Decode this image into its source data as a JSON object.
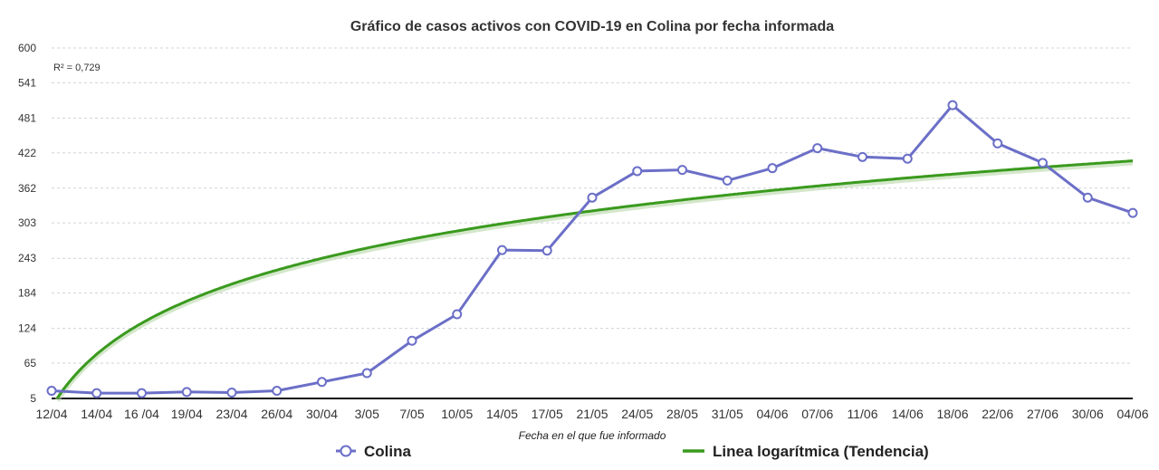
{
  "chart_data": {
    "type": "line",
    "title": "Gráfico de casos activos con COVID-19 en Colina por fecha informada",
    "xlabel": "Fecha en el que fue informado",
    "ylabel": "",
    "ylim": [
      5,
      600
    ],
    "yticks": [
      "5",
      "65",
      "124",
      "184",
      "243",
      "303",
      "362",
      "422",
      "481",
      "541",
      "600"
    ],
    "grid": true,
    "legend_placement": "bottom",
    "annotation": "R² = 0,729",
    "categories": [
      "12/04",
      "14/04",
      "16 /04",
      "19/04",
      "23/04",
      "26/04",
      "30/04",
      "3/05",
      "7/05",
      "10/05",
      "14/05",
      "17/05",
      "21/05",
      "24/05",
      "28/05",
      "31/05",
      "04/06",
      "07/06",
      "11/06",
      "14/06",
      "18/06",
      "22/06",
      "27/06",
      "30/06",
      "04/06"
    ],
    "series": [
      {
        "name": "Colina",
        "color": "#6b6fc7",
        "marker": "circle",
        "values": [
          18,
          14,
          14,
          16,
          15,
          18,
          33,
          48,
          103,
          148,
          257,
          256,
          346,
          391,
          393,
          375,
          396,
          430,
          415,
          412,
          503,
          438,
          405,
          346,
          320
        ]
      },
      {
        "name": "Linea logarítmica (Tendencia)",
        "color": "#3a9a1e",
        "marker": "none",
        "trend": {
          "kind": "logarithmic",
          "intercept": -10,
          "slope": 130
        }
      }
    ]
  }
}
